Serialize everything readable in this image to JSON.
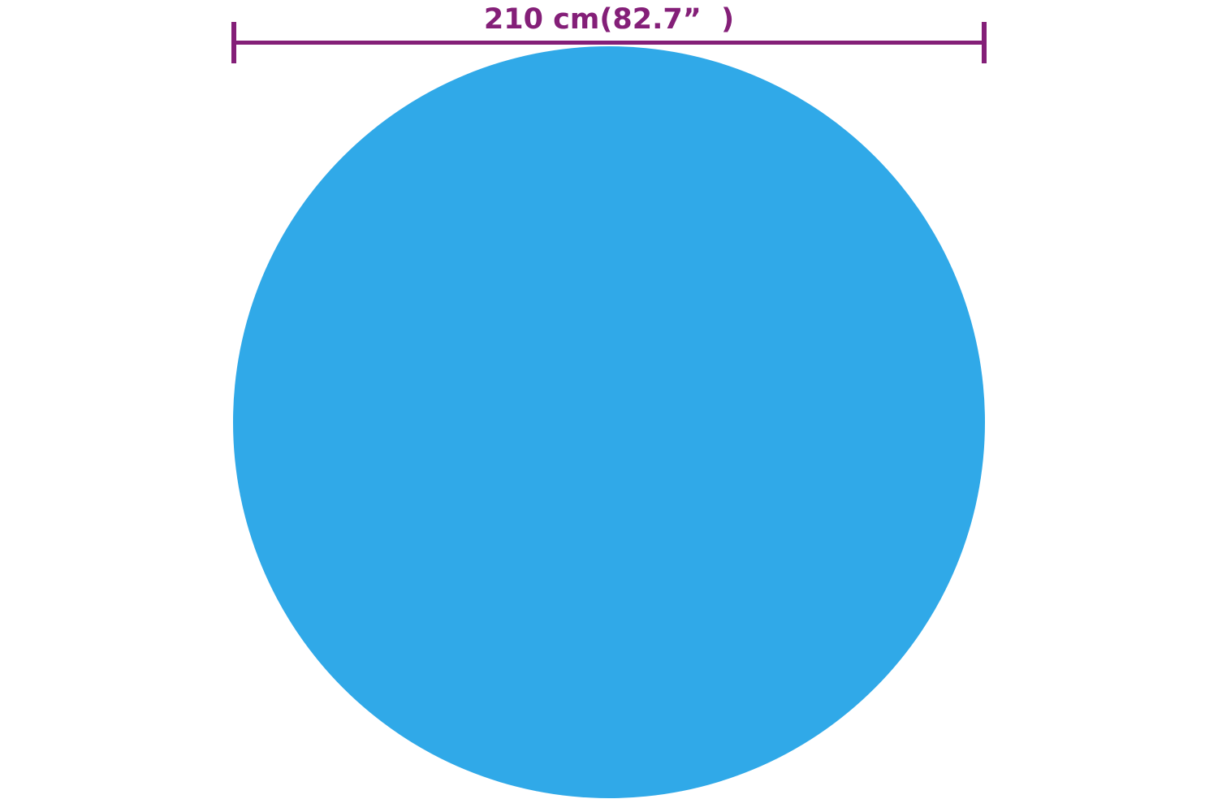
{
  "dimension": {
    "label": "210 cm(82.7”  )"
  },
  "colors": {
    "cover_blue": "#30A9E8",
    "dimension_magenta": "#841F78",
    "background": "#FFFFFF"
  }
}
